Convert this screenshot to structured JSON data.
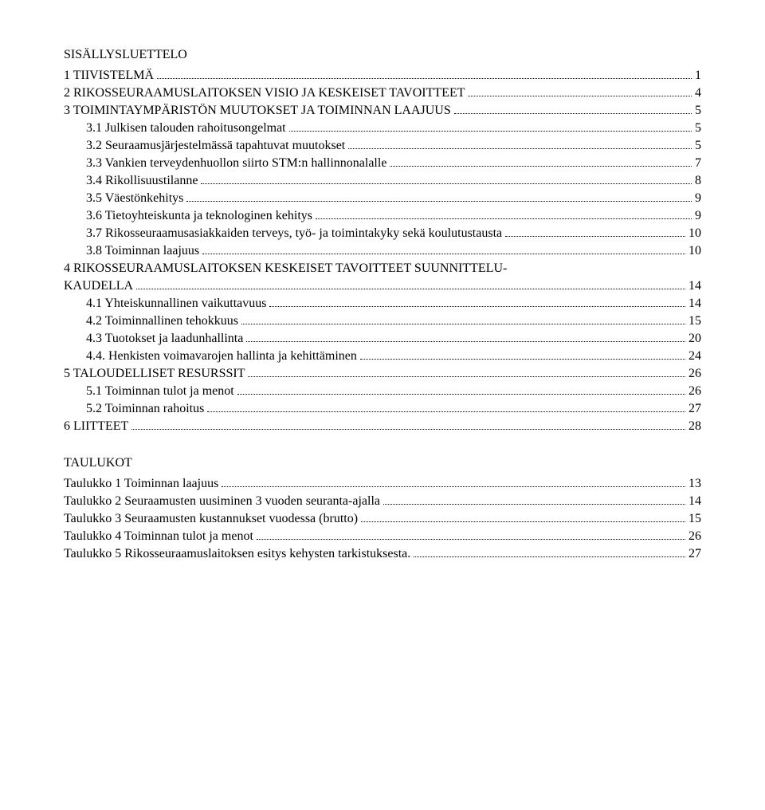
{
  "title": "SISÄLLYSLUETTELO",
  "toc": [
    {
      "level": 0,
      "label": "1    TIIVISTELMÄ",
      "page": "1"
    },
    {
      "level": 0,
      "label": "2    RIKOSSEURAAMUSLAITOKSEN VISIO JA KESKEISET TAVOITTEET",
      "page": "4"
    },
    {
      "level": 0,
      "label": "3    TOIMINTAYMPÄRISTÖN MUUTOKSET JA TOIMINNAN LAAJUUS",
      "page": "5"
    },
    {
      "level": 1,
      "label": "3.1 Julkisen talouden rahoitusongelmat",
      "page": "5"
    },
    {
      "level": 1,
      "label": "3.2 Seuraamusjärjestelmässä tapahtuvat muutokset",
      "page": "5"
    },
    {
      "level": 1,
      "label": "3.3 Vankien terveydenhuollon siirto STM:n hallinnonalalle",
      "page": "7"
    },
    {
      "level": 1,
      "label": "3.4 Rikollisuustilanne",
      "page": "8"
    },
    {
      "level": 1,
      "label": "3.5 Väestönkehitys",
      "page": "9"
    },
    {
      "level": 1,
      "label": "3.6 Tietoyhteiskunta ja teknologinen kehitys",
      "page": "9"
    },
    {
      "level": 1,
      "label": "3.7 Rikosseuraamusasiakkaiden terveys, työ- ja toimintakyky sekä koulutustausta",
      "page": "10"
    },
    {
      "level": 1,
      "label": "3.8 Toiminnan laajuus",
      "page": "10"
    },
    {
      "level": 0,
      "label": "4    RIKOSSEURAAMUSLAITOKSEN KESKEISET TAVOITTEET SUUNNITTELU-KAUDELLA",
      "page": "14"
    },
    {
      "level": 1,
      "label": "4.1 Yhteiskunnallinen vaikuttavuus",
      "page": "14"
    },
    {
      "level": 1,
      "label": "4.2 Toiminnallinen tehokkuus",
      "page": "15"
    },
    {
      "level": 1,
      "label": "4.3 Tuotokset ja laadunhallinta",
      "page": "20"
    },
    {
      "level": 1,
      "label": "4.4. Henkisten voimavarojen hallinta ja kehittäminen",
      "page": "24"
    },
    {
      "level": 0,
      "label": "5    TALOUDELLISET RESURSSIT",
      "page": "26"
    },
    {
      "level": 1,
      "label": "5.1 Toiminnan tulot ja menot",
      "page": "26"
    },
    {
      "level": 1,
      "label": "5.2 Toiminnan rahoitus",
      "page": "27"
    },
    {
      "level": 0,
      "label": "6    LIITTEET",
      "page": "28"
    }
  ],
  "tables_title": "TAULUKOT",
  "tables": [
    {
      "label": "Taulukko 1 Toiminnan laajuus",
      "page": "13"
    },
    {
      "label": "Taulukko 2 Seuraamusten uusiminen 3 vuoden seuranta-ajalla",
      "page": "14"
    },
    {
      "label": "Taulukko 3 Seuraamusten kustannukset vuodessa (brutto)",
      "page": "15"
    },
    {
      "label": "Taulukko 4 Toiminnan tulot ja menot",
      "page": "26"
    },
    {
      "label": "Taulukko 5 Rikosseuraamuslaitoksen esitys kehysten tarkistuksesta.",
      "page": "27"
    }
  ]
}
